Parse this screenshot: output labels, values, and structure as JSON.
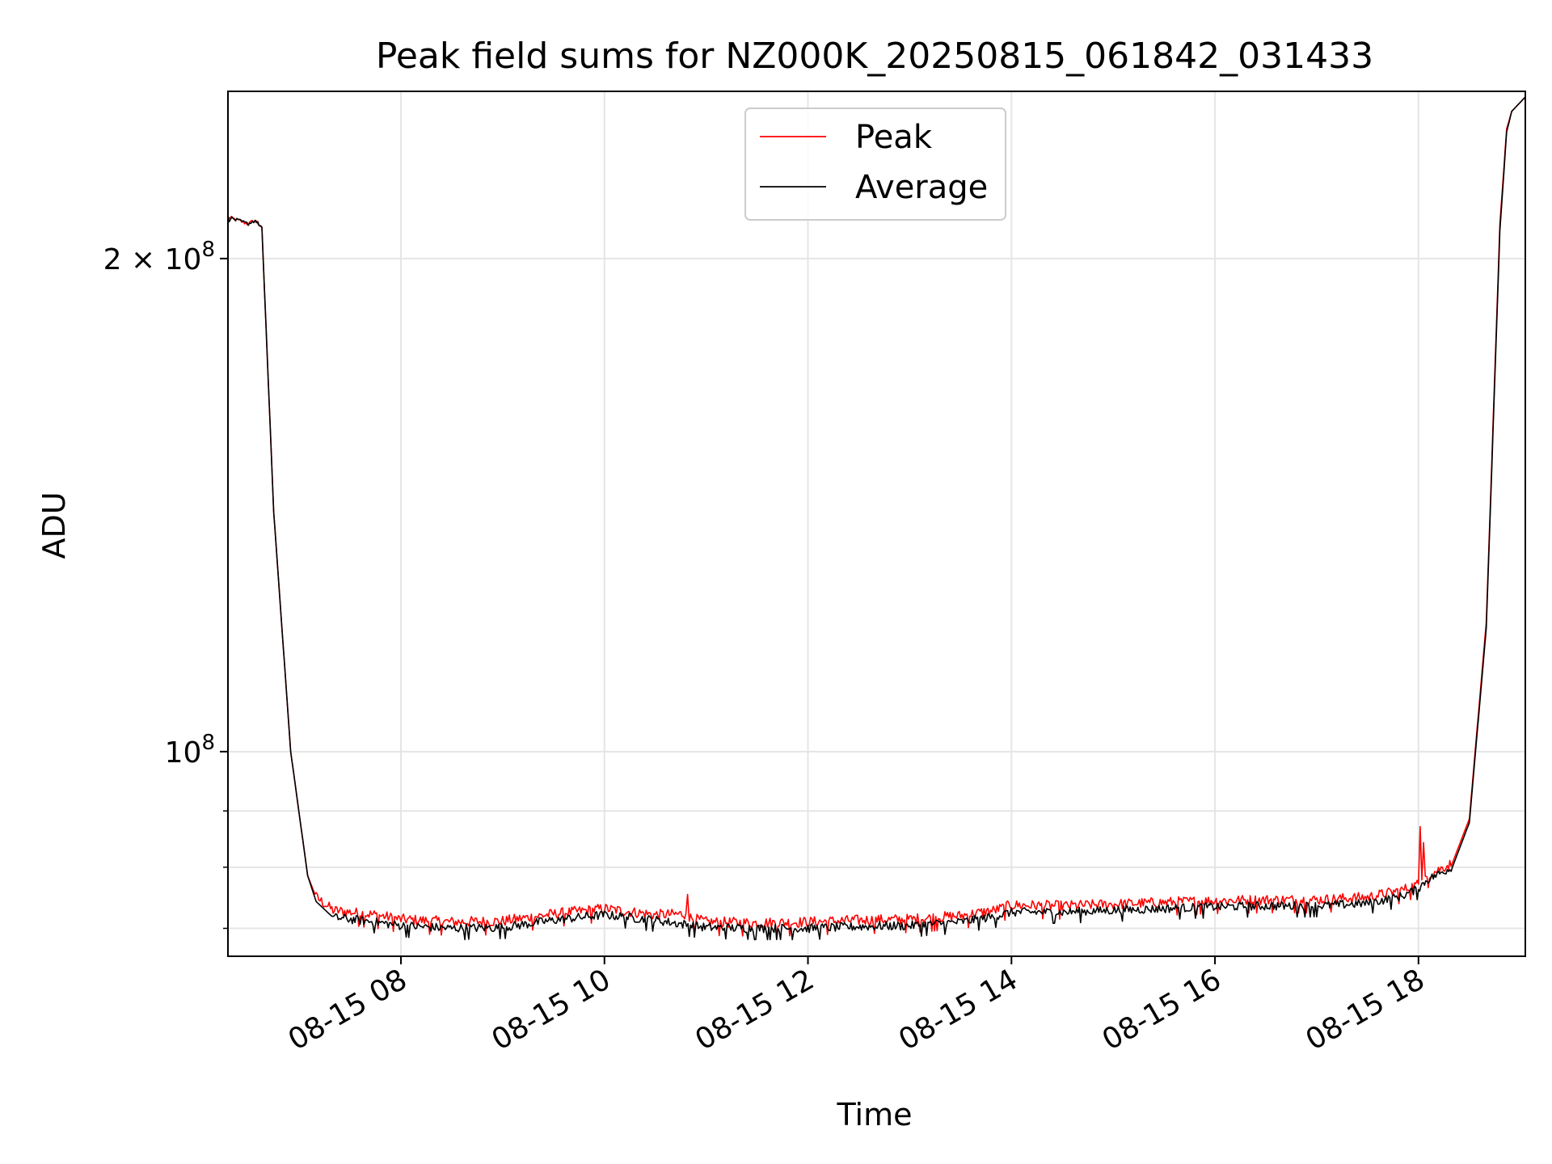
{
  "chart_data": {
    "type": "line",
    "title": "Peak field sums for NZ000K_20250815_061842_031433",
    "xlabel": "Time",
    "ylabel": "ADU",
    "yscale": "log",
    "grid": true,
    "legend_position": "top-center",
    "xlim": [
      "2025-08-15 06:18",
      "2025-08-15 19:03"
    ],
    "ylim": [
      75000000,
      253000000
    ],
    "x_ticks": [
      {
        "value": "2025-08-15 08:00",
        "label": "08-15 08"
      },
      {
        "value": "2025-08-15 10:00",
        "label": "08-15 10"
      },
      {
        "value": "2025-08-15 12:00",
        "label": "08-15 12"
      },
      {
        "value": "2025-08-15 14:00",
        "label": "08-15 14"
      },
      {
        "value": "2025-08-15 16:00",
        "label": "08-15 16"
      },
      {
        "value": "2025-08-15 18:00",
        "label": "08-15 18"
      }
    ],
    "y_ticks": [
      {
        "value": 100000000,
        "base": "10",
        "exp": "8",
        "mantissa": ""
      },
      {
        "value": 200000000,
        "base": "10",
        "exp": "8",
        "mantissa": "2 × "
      }
    ],
    "y_minor_ticks": [
      78000000,
      85000000,
      92000000
    ],
    "series": [
      {
        "name": "Peak",
        "color": "#ff0000",
        "noise": 600000,
        "x": [
          "2025-08-15 06:18",
          "2025-08-15 06:30",
          "2025-08-15 06:34",
          "2025-08-15 06:38",
          "2025-08-15 06:45",
          "2025-08-15 06:55",
          "2025-08-15 07:05",
          "2025-08-15 07:10",
          "2025-08-15 07:20",
          "2025-08-15 07:45",
          "2025-08-15 08:00",
          "2025-08-15 08:30",
          "2025-08-15 09:00",
          "2025-08-15 09:30",
          "2025-08-15 10:00",
          "2025-08-15 10:30",
          "2025-08-15 10:48",
          "2025-08-15 10:49",
          "2025-08-15 10:50",
          "2025-08-15 11:00",
          "2025-08-15 11:30",
          "2025-08-15 12:00",
          "2025-08-15 12:30",
          "2025-08-15 13:00",
          "2025-08-15 13:30",
          "2025-08-15 13:50",
          "2025-08-15 14:00",
          "2025-08-15 14:30",
          "2025-08-15 15:00",
          "2025-08-15 15:30",
          "2025-08-15 16:00",
          "2025-08-15 16:30",
          "2025-08-15 17:00",
          "2025-08-15 17:30",
          "2025-08-15 17:50",
          "2025-08-15 18:00",
          "2025-08-15 18:01",
          "2025-08-15 18:02",
          "2025-08-15 18:03",
          "2025-08-15 18:04",
          "2025-08-15 18:05",
          "2025-08-15 18:20",
          "2025-08-15 18:30",
          "2025-08-15 18:40",
          "2025-08-15 18:48",
          "2025-08-15 18:52",
          "2025-08-15 18:55",
          "2025-08-15 19:03"
        ],
        "y": [
          212000000,
          210000000,
          211000000,
          209000000,
          140000000,
          100000000,
          84000000,
          81500000,
          80000000,
          79500000,
          79000000,
          78700000,
          78800000,
          79600000,
          80200000,
          79500000,
          79600000,
          81800000,
          79200000,
          78700000,
          78600000,
          78700000,
          78900000,
          79000000,
          79400000,
          80000000,
          80600000,
          80500000,
          80700000,
          80900000,
          81100000,
          81200000,
          81200000,
          81500000,
          82300000,
          83000000,
          90000000,
          83500000,
          88000000,
          83800000,
          84000000,
          85500000,
          91000000,
          120000000,
          210000000,
          240000000,
          246000000,
          251000000
        ]
      },
      {
        "name": "Average",
        "color": "#000000",
        "noise": 500000,
        "x": [
          "2025-08-15 06:18",
          "2025-08-15 06:30",
          "2025-08-15 06:34",
          "2025-08-15 06:38",
          "2025-08-15 06:45",
          "2025-08-15 06:55",
          "2025-08-15 07:05",
          "2025-08-15 07:10",
          "2025-08-15 07:20",
          "2025-08-15 07:45",
          "2025-08-15 08:00",
          "2025-08-15 08:30",
          "2025-08-15 09:00",
          "2025-08-15 09:30",
          "2025-08-15 10:00",
          "2025-08-15 10:30",
          "2025-08-15 11:00",
          "2025-08-15 11:30",
          "2025-08-15 12:00",
          "2025-08-15 12:30",
          "2025-08-15 13:00",
          "2025-08-15 13:30",
          "2025-08-15 13:50",
          "2025-08-15 14:00",
          "2025-08-15 14:30",
          "2025-08-15 15:00",
          "2025-08-15 15:30",
          "2025-08-15 16:00",
          "2025-08-15 16:30",
          "2025-08-15 17:00",
          "2025-08-15 17:30",
          "2025-08-15 17:50",
          "2025-08-15 18:00",
          "2025-08-15 18:05",
          "2025-08-15 18:20",
          "2025-08-15 18:30",
          "2025-08-15 18:40",
          "2025-08-15 18:48",
          "2025-08-15 18:52",
          "2025-08-15 18:55",
          "2025-08-15 19:03"
        ],
        "y": [
          212000000,
          210000000,
          211000000,
          209000000,
          140000000,
          100000000,
          84000000,
          81000000,
          79200000,
          78700000,
          78300000,
          78000000,
          78100000,
          78900000,
          79500000,
          78900000,
          78100000,
          78000000,
          78000000,
          78200000,
          78300000,
          78700000,
          79300000,
          79800000,
          79800000,
          80000000,
          80200000,
          80400000,
          80500000,
          80500000,
          80800000,
          81600000,
          82500000,
          83500000,
          85000000,
          90500000,
          119000000,
          208000000,
          239000000,
          246000000,
          251000000
        ]
      }
    ]
  }
}
